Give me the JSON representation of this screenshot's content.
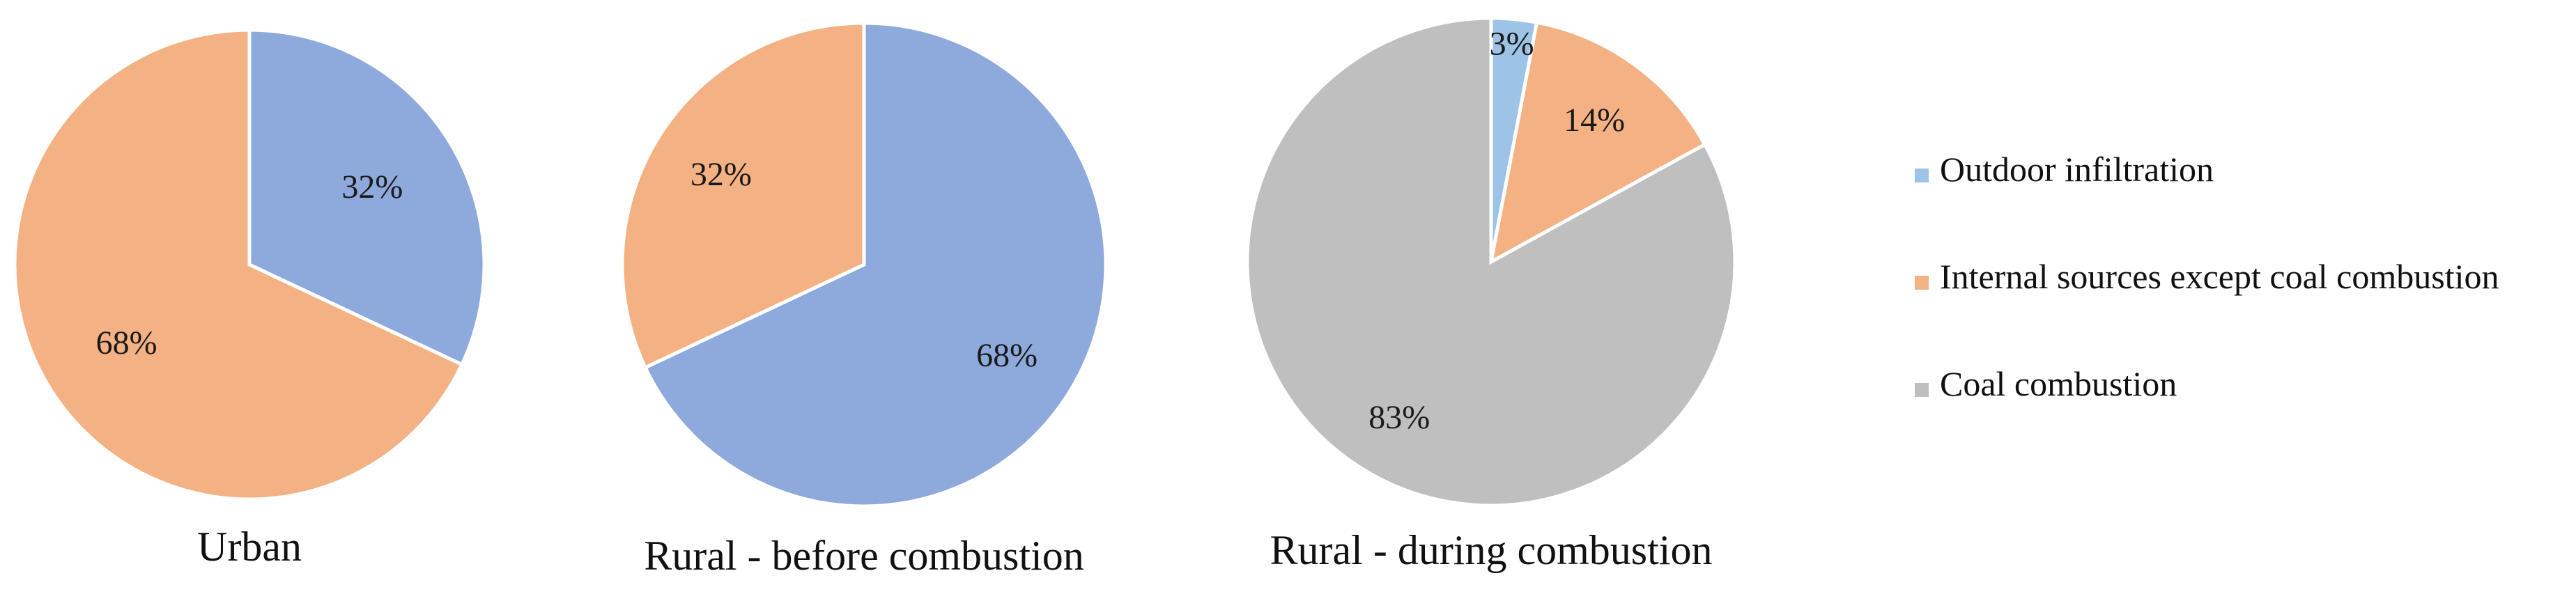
{
  "legend": {
    "placement": "right",
    "items": [
      {
        "label": "Outdoor infiltration",
        "color": "#9DC3E6"
      },
      {
        "label": "Internal sources except coal combustion",
        "color": "#F4B183"
      },
      {
        "label": "Coal combustion",
        "color": "#BFBFBF"
      }
    ]
  },
  "chart_data": [
    {
      "type": "pie",
      "title": "Urban",
      "slices": [
        {
          "category": "Outdoor infiltration",
          "value": 32,
          "label": "32%",
          "color": "#8EA9DB"
        },
        {
          "category": "Internal sources except coal combustion",
          "value": 68,
          "label": "68%",
          "color": "#F4B183"
        }
      ]
    },
    {
      "type": "pie",
      "title": "Rural - before combustion",
      "slices": [
        {
          "category": "Outdoor infiltration",
          "value": 68,
          "label": "68%",
          "color": "#8EA9DB"
        },
        {
          "category": "Internal sources except coal combustion",
          "value": 32,
          "label": "32%",
          "color": "#F4B183"
        }
      ]
    },
    {
      "type": "pie",
      "title": "Rural - during combustion",
      "slices": [
        {
          "category": "Outdoor infiltration",
          "value": 3,
          "label": "3%",
          "color": "#9DC3E6"
        },
        {
          "category": "Internal sources except coal combustion",
          "value": 14,
          "label": "14%",
          "color": "#F4B183"
        },
        {
          "category": "Coal combustion",
          "value": 83,
          "label": "83%",
          "color": "#BFBFBF"
        }
      ]
    }
  ]
}
